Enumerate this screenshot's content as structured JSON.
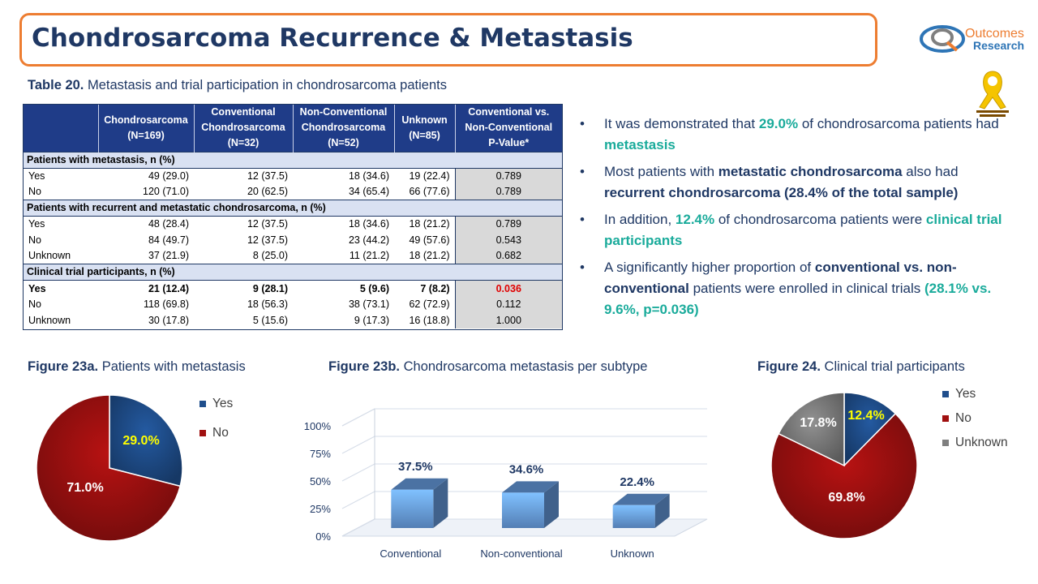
{
  "header": {
    "title": "Chondrosarcoma Recurrence & Metastasis",
    "logo_word1": "Outcomes",
    "logo_word2": "Research"
  },
  "table_caption": {
    "label": "Table 20.",
    "text": " Metastasis and trial participation in chondrosarcoma patients"
  },
  "table": {
    "columns": [
      "",
      "Chondrosarcoma (N=169)",
      "Conventional Chondrosarcoma (N=32)",
      "Non-Conventional Chondrosarcoma (N=52)",
      "Unknown (N=85)",
      "Conventional vs. Non-Conventional P-Value*"
    ],
    "sections": [
      {
        "title": "Patients with metastasis, n (%)",
        "rows": [
          {
            "label": "Yes",
            "cells": [
              "49 (29.0)",
              "12 (37.5)",
              "18 (34.6)",
              "19 (22.4)"
            ],
            "pvalue": "0.789"
          },
          {
            "label": "No",
            "cells": [
              "120 (71.0)",
              "20 (62.5)",
              "34 (65.4)",
              "66 (77.6)"
            ],
            "pvalue": "0.789"
          }
        ]
      },
      {
        "title": "Patients with recurrent and metastatic chondrosarcoma, n (%)",
        "rows": [
          {
            "label": "Yes",
            "cells": [
              "48 (28.4)",
              "12 (37.5)",
              "18 (34.6)",
              "18 (21.2)"
            ],
            "pvalue": "0.789"
          },
          {
            "label": "No",
            "cells": [
              "84 (49.7)",
              "12 (37.5)",
              "23 (44.2)",
              "49 (57.6)"
            ],
            "pvalue": "0.543"
          },
          {
            "label": "Unknown",
            "cells": [
              "37 (21.9)",
              "8 (25.0)",
              "11 (21.2)",
              "18 (21.2)"
            ],
            "pvalue": "0.682"
          }
        ]
      },
      {
        "title": "Clinical trial participants, n (%)",
        "rows": [
          {
            "label": "Yes",
            "cells": [
              "21 (12.4)",
              "9 (28.1)",
              "5 (9.6)",
              "7 (8.2)"
            ],
            "pvalue": "0.036",
            "bold": true,
            "pvalue_color": "#e00000"
          },
          {
            "label": "No",
            "cells": [
              "118 (69.8)",
              "18 (56.3)",
              "38 (73.1)",
              "62 (72.9)"
            ],
            "pvalue": "0.112"
          },
          {
            "label": "Unknown",
            "cells": [
              "30 (17.8)",
              "5 (15.6)",
              "9 (17.3)",
              "16 (18.8)"
            ],
            "pvalue": "1.000"
          }
        ]
      }
    ]
  },
  "bullets": [
    [
      {
        "t": "It was demonstrated that ",
        "s": ""
      },
      {
        "t": "29.0%",
        "s": "teal"
      },
      {
        "t": " of chondrosarcoma patients had ",
        "s": ""
      },
      {
        "t": "metastasis",
        "s": "teal"
      }
    ],
    [
      {
        "t": "Most patients with ",
        "s": ""
      },
      {
        "t": "metastatic chondrosarcoma",
        "s": "navy"
      },
      {
        "t": "  also had ",
        "s": ""
      },
      {
        "t": "recurrent chondrosarcoma  (28.4% of the total sample)",
        "s": "navy"
      }
    ],
    [
      {
        "t": "In addition, ",
        "s": ""
      },
      {
        "t": "12.4%",
        "s": "teal"
      },
      {
        "t": " of chondrosarcoma  patients were ",
        "s": ""
      },
      {
        "t": "clinical trial participants",
        "s": "teal"
      }
    ],
    [
      {
        "t": "A significantly higher proportion of ",
        "s": ""
      },
      {
        "t": "conventional vs. non-conventional",
        "s": "navy"
      },
      {
        "t": " patients were enrolled in clinical trials ",
        "s": ""
      },
      {
        "t": "(28.1% vs. 9.6%, p=0.036)",
        "s": "teal"
      }
    ]
  ],
  "figure_captions": {
    "fig23a": {
      "label": "Figure 23a.",
      "text": " Patients with metastasis"
    },
    "fig23b": {
      "label": "Figure 23b.",
      "text": " Chondrosarcoma  metastasis per subtype"
    },
    "fig24": {
      "label": "Figure 24.",
      "text": " Clinical trial participants"
    }
  },
  "colors": {
    "yes": "#1f4e8c",
    "no": "#a01010",
    "unknown": "#7f7f7f",
    "bar": "#6fa8f0",
    "label_yellow": "#ffff00",
    "navy": "#1f3864",
    "teal": "#1aab9b",
    "orange": "#ed7d31"
  },
  "chart_data": [
    {
      "type": "pie",
      "labels": [
        "Yes",
        "No"
      ],
      "values": [
        29.0,
        71.0
      ],
      "data_labels": [
        "29.0%",
        "71.0%"
      ],
      "legend": "right"
    },
    {
      "type": "bar",
      "categories": [
        "Conventional",
        "Non-conventional",
        "Unknown"
      ],
      "values": [
        37.5,
        34.6,
        22.4
      ],
      "data_labels": [
        "37.5%",
        "34.6%",
        "22.4%"
      ],
      "ylim": [
        0,
        100
      ],
      "yticks": [
        "0%",
        "25%",
        "50%",
        "75%",
        "100%"
      ],
      "grid": true
    },
    {
      "type": "pie",
      "labels": [
        "Yes",
        "No",
        "Unknown"
      ],
      "values": [
        12.4,
        69.8,
        17.8
      ],
      "data_labels": [
        "12.4%",
        "69.8%",
        "17.8%"
      ],
      "legend": "right"
    }
  ]
}
